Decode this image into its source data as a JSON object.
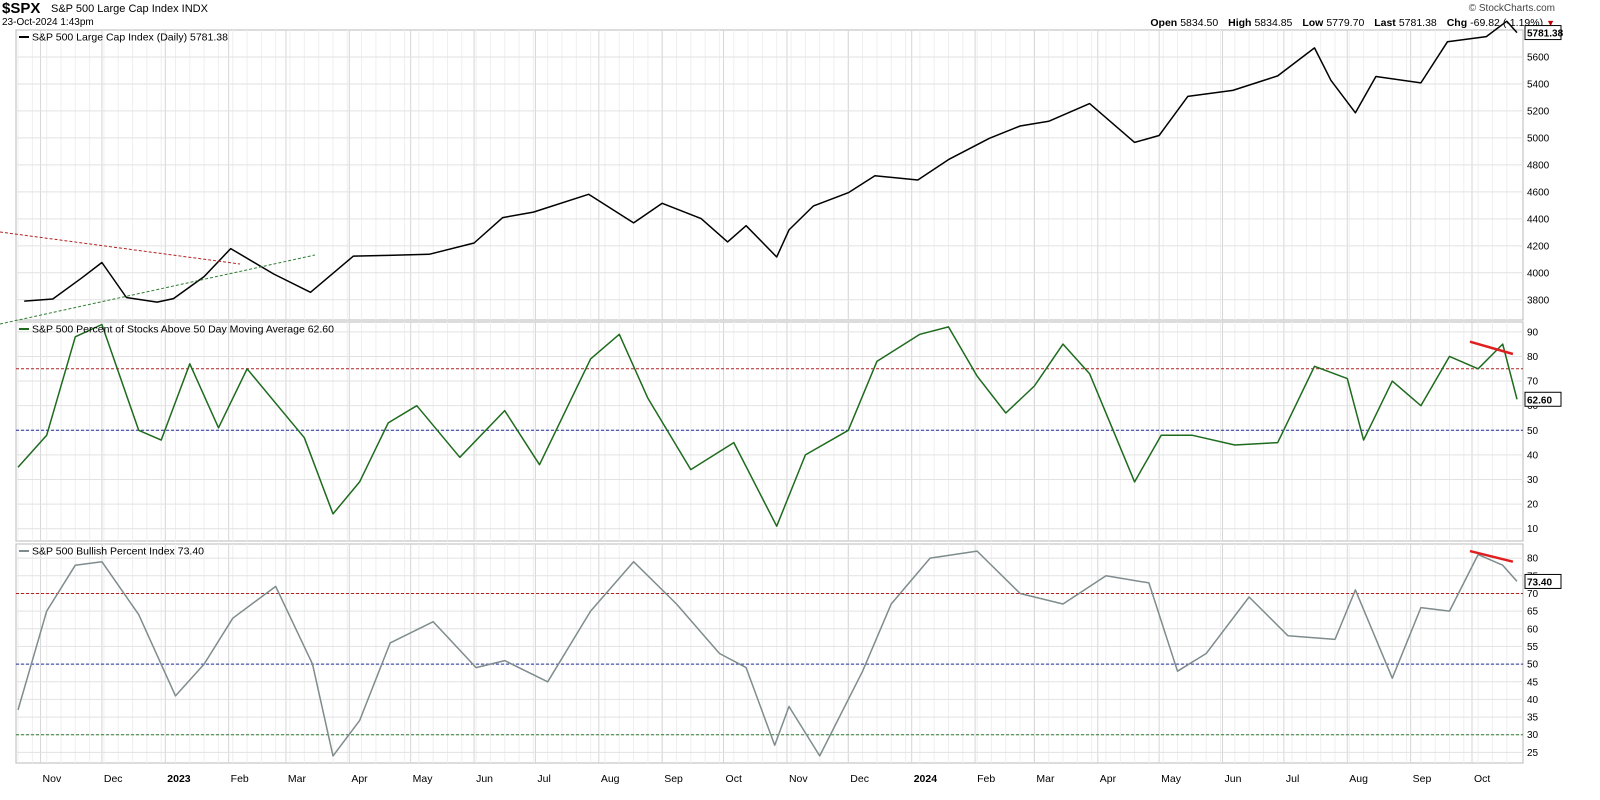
{
  "header": {
    "symbol": "$SPX",
    "name": "S&P 500 Large Cap Index INDX",
    "date": "23-Oct-2024 1:43pm",
    "brand": "© StockCharts.com",
    "quote": {
      "open_label": "Open",
      "open": "5834.50",
      "high_label": "High",
      "high": "5834.85",
      "low_label": "Low",
      "low": "5779.70",
      "last_label": "Last",
      "last": "5781.38",
      "chg_label": "Chg",
      "chg": "-69.82 (-1.19%)",
      "down_arrow": "▼"
    }
  },
  "colors": {
    "price_line": "#000000",
    "breadth_line": "#1e6b1e",
    "bpi_line": "#7f8c8d",
    "red_ref": "#b22222",
    "blue_ref": "#1f2f9a",
    "green_ref": "#2e7d32",
    "trend_red": "#e02020",
    "grid": "#e2e2e2",
    "border": "#b8b8b8"
  },
  "chart_data": [
    {
      "type": "line",
      "title": "S&P 500 Large Cap Index (Daily) 5781.38",
      "last_label": "5781.38",
      "ylim": [
        3650,
        5800
      ],
      "yticks": [
        3800,
        4000,
        4200,
        4400,
        4600,
        4800,
        5000,
        5200,
        5400,
        5600
      ],
      "x_ticks": [
        "Nov",
        "Dec",
        "2023",
        "Feb",
        "Mar",
        "Apr",
        "May",
        "Jun",
        "Jul",
        "Aug",
        "Sep",
        "Oct",
        "Nov",
        "Dec",
        "2024",
        "Feb",
        "Mar",
        "Apr",
        "May",
        "Jun",
        "Jul",
        "Aug",
        "Sep",
        "Oct"
      ],
      "x": [
        "2022-10-24",
        "2022-11-07",
        "2022-11-21",
        "2022-12-01",
        "2022-12-13",
        "2022-12-28",
        "2023-01-05",
        "2023-01-20",
        "2023-02-02",
        "2023-02-23",
        "2023-03-13",
        "2023-04-03",
        "2023-04-20",
        "2023-05-10",
        "2023-06-01",
        "2023-06-15",
        "2023-06-30",
        "2023-07-27",
        "2023-08-18",
        "2023-09-01",
        "2023-09-20",
        "2023-10-03",
        "2023-10-12",
        "2023-10-27",
        "2023-11-02",
        "2023-11-14",
        "2023-12-01",
        "2023-12-14",
        "2024-01-04",
        "2024-01-19",
        "2024-02-08",
        "2024-02-23",
        "2024-03-08",
        "2024-03-28",
        "2024-04-19",
        "2024-05-01",
        "2024-05-15",
        "2024-06-06",
        "2024-06-28",
        "2024-07-16",
        "2024-07-24",
        "2024-08-05",
        "2024-08-15",
        "2024-09-06",
        "2024-09-19",
        "2024-10-08",
        "2024-10-18",
        "2024-10-23"
      ],
      "series": [
        {
          "values": [
            3790,
            3806,
            3960,
            4076,
            3817,
            3783,
            3809,
            3972,
            4179,
            3991,
            3855,
            4124,
            4129,
            4137,
            4221,
            4409,
            4450,
            4582,
            4370,
            4515,
            4402,
            4229,
            4349,
            4117,
            4318,
            4496,
            4594,
            4719,
            4688,
            4839,
            4997,
            5088,
            5123,
            5254,
            4967,
            5018,
            5308,
            5352,
            5460,
            5667,
            5427,
            5186,
            5455,
            5408,
            5713,
            5751,
            5865,
            5781
          ]
        }
      ]
    },
    {
      "type": "line",
      "title": "S&P 500 Percent of Stocks Above 50 Day Moving Average 62.60",
      "last_label": "62.60",
      "ylim": [
        5,
        94
      ],
      "yticks": [
        10,
        20,
        30,
        40,
        50,
        60,
        70,
        80,
        90
      ],
      "ref_lines": [
        75,
        50
      ],
      "trendline_y": [
        86,
        81
      ],
      "x": [
        "2022-10-21",
        "2022-11-04",
        "2022-11-18",
        "2022-12-01",
        "2022-12-19",
        "2022-12-30",
        "2023-01-13",
        "2023-01-27",
        "2023-02-10",
        "2023-03-10",
        "2023-03-24",
        "2023-04-06",
        "2023-04-20",
        "2023-05-04",
        "2023-05-25",
        "2023-06-16",
        "2023-07-03",
        "2023-07-28",
        "2023-08-11",
        "2023-08-25",
        "2023-09-15",
        "2023-10-06",
        "2023-10-27",
        "2023-11-10",
        "2023-12-01",
        "2023-12-15",
        "2024-01-05",
        "2024-01-19",
        "2024-02-02",
        "2024-02-16",
        "2024-03-01",
        "2024-03-15",
        "2024-03-28",
        "2024-04-19",
        "2024-05-02",
        "2024-05-17",
        "2024-06-07",
        "2024-06-28",
        "2024-07-16",
        "2024-08-01",
        "2024-08-09",
        "2024-08-23",
        "2024-09-06",
        "2024-09-20",
        "2024-10-04",
        "2024-10-16",
        "2024-10-23"
      ],
      "series": [
        {
          "values": [
            35,
            48,
            88,
            93,
            50,
            46,
            77,
            51,
            75,
            47,
            16,
            29,
            53,
            60,
            39,
            58,
            36,
            79,
            89,
            63,
            34,
            45,
            11,
            40,
            50,
            78,
            89,
            92,
            72,
            57,
            68,
            85,
            73,
            29,
            48,
            48,
            44,
            45,
            76,
            71,
            46,
            70,
            60,
            80,
            75,
            85,
            62.6
          ]
        }
      ]
    },
    {
      "type": "line",
      "title": "S&P 500 Bullish Percent Index 73.40",
      "last_label": "73.40",
      "ylim": [
        22,
        84
      ],
      "yticks": [
        25,
        30,
        35,
        40,
        45,
        50,
        55,
        60,
        65,
        70,
        75,
        80
      ],
      "ref_lines": [
        70,
        50,
        30
      ],
      "trendline_y": [
        82,
        79
      ],
      "x": [
        "2022-10-21",
        "2022-11-04",
        "2022-11-18",
        "2022-12-01",
        "2022-12-19",
        "2023-01-06",
        "2023-01-20",
        "2023-02-03",
        "2023-02-24",
        "2023-03-14",
        "2023-03-24",
        "2023-04-06",
        "2023-04-21",
        "2023-05-12",
        "2023-06-02",
        "2023-06-16",
        "2023-07-07",
        "2023-07-28",
        "2023-08-18",
        "2023-09-08",
        "2023-09-29",
        "2023-10-12",
        "2023-10-26",
        "2023-11-02",
        "2023-11-17",
        "2023-12-08",
        "2023-12-22",
        "2024-01-10",
        "2024-02-02",
        "2024-02-23",
        "2024-03-15",
        "2024-04-05",
        "2024-04-26",
        "2024-05-10",
        "2024-05-24",
        "2024-06-14",
        "2024-07-03",
        "2024-07-26",
        "2024-08-05",
        "2024-08-23",
        "2024-09-06",
        "2024-09-20",
        "2024-10-04",
        "2024-10-16",
        "2024-10-23"
      ],
      "series": [
        {
          "values": [
            37,
            65,
            78,
            79,
            64,
            41,
            50,
            63,
            72,
            50,
            24,
            34,
            56,
            62,
            49,
            51,
            45,
            65,
            79,
            67,
            53,
            49,
            27,
            38,
            24,
            48,
            67,
            80,
            82,
            70,
            67,
            75,
            73,
            48,
            53,
            69,
            58,
            57,
            71,
            46,
            66,
            65,
            81,
            78,
            73.4
          ]
        }
      ]
    }
  ]
}
